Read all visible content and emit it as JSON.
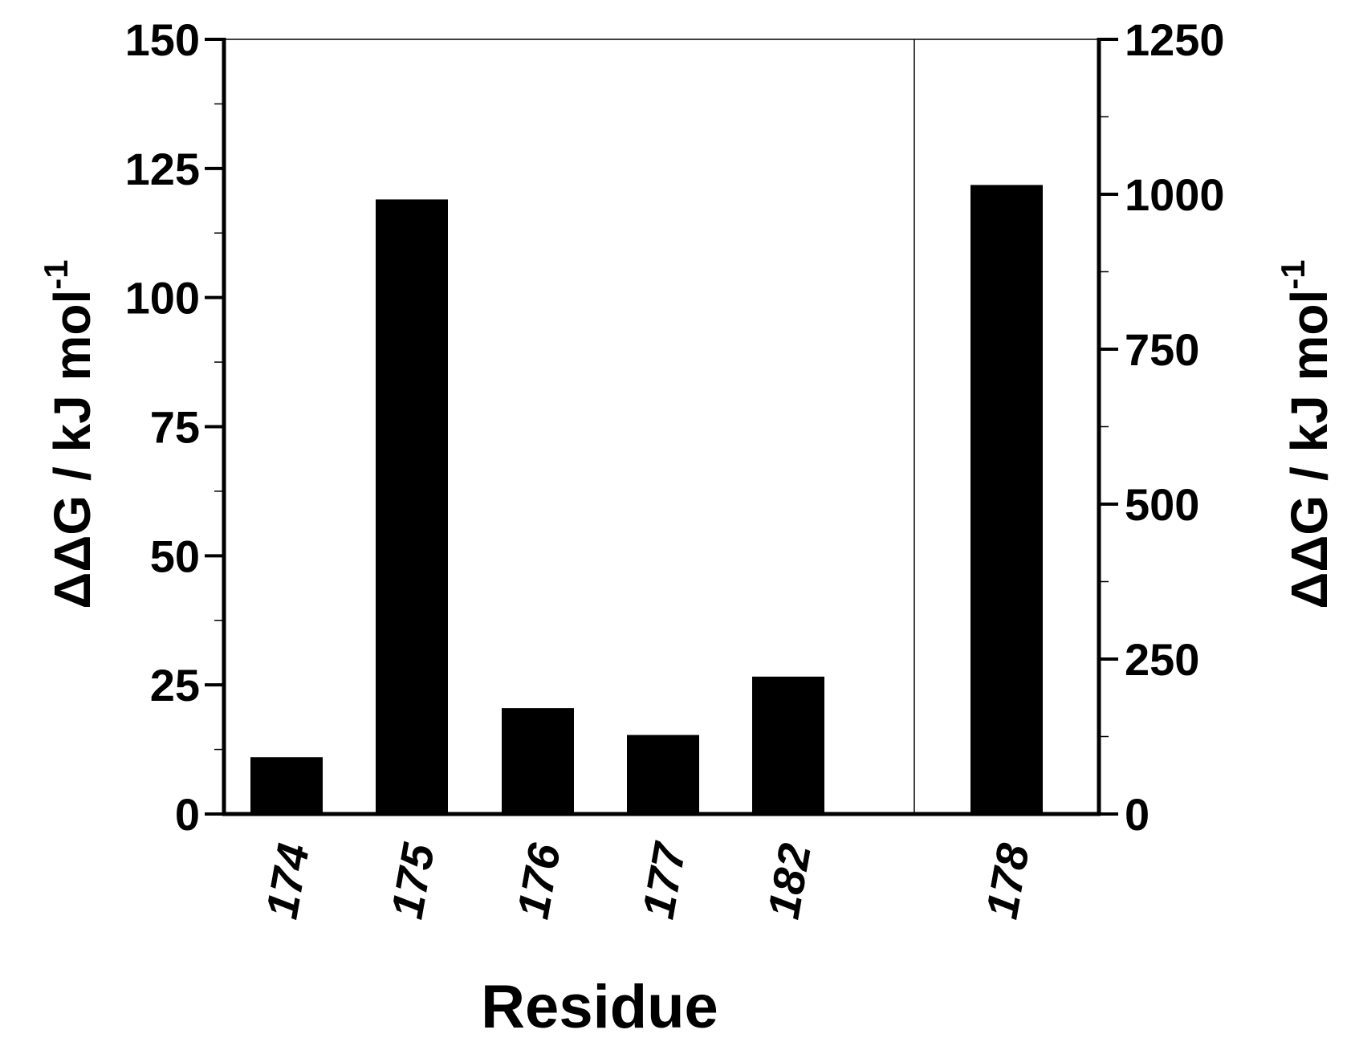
{
  "chart_data": {
    "type": "bar",
    "categories": [
      "174",
      "175",
      "176",
      "177",
      "182",
      "178"
    ],
    "series": [
      {
        "color": "#000000",
        "values": [
          11,
          119,
          20.5,
          15.3,
          26.6,
          null
        ]
      },
      {
        "color": "#000000",
        "axis": "y2",
        "values": [
          null,
          null,
          null,
          null,
          null,
          1015
        ]
      }
    ],
    "xlabel": "Residue",
    "ylabel": {
      "text": "ΔΔG / kJ mol",
      "superscript": "-1"
    },
    "y2label": {
      "text": "ΔΔG / kJ mol",
      "superscript": "-1"
    },
    "ylim": [
      0,
      150
    ],
    "yticks": [
      0,
      25,
      50,
      75,
      100,
      125,
      150
    ],
    "yminorticks": [
      12.5,
      37.5,
      62.5,
      87.5,
      112.5,
      137.5
    ],
    "y2lim": [
      0,
      1250
    ],
    "y2ticks": [
      0,
      250,
      500,
      750,
      1000,
      1250
    ],
    "y2minorticks": [
      125,
      375,
      625,
      875,
      1125
    ],
    "grid": false
  }
}
